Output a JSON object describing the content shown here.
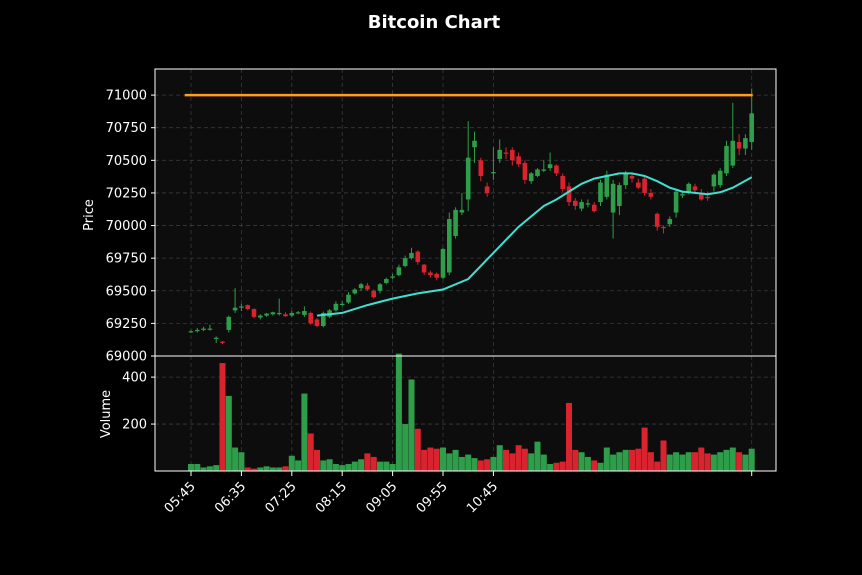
{
  "chart_data": {
    "type": "candlestick",
    "title": "Bitcoin Chart",
    "colors": {
      "background": "#000000",
      "plot_background": "#0d0d0d",
      "up": "#2e9e4a",
      "down": "#d9232e",
      "moving_average": "#40e0d0",
      "level_line": "#ff9f1a",
      "grid": "#3a3a3a"
    },
    "grid": true,
    "x_tick_labels": [
      "05:45",
      "06:35",
      "07:25",
      "08:15",
      "09:05",
      "09:55",
      "10:45"
    ],
    "price_panel": {
      "ylabel": "Price",
      "ylim": [
        69000,
        71200
      ],
      "y_ticks": [
        69000,
        69250,
        69500,
        69750,
        70000,
        70250,
        70500,
        70750,
        71000
      ],
      "level_line": 71000
    },
    "volume_panel": {
      "ylabel": "Volume",
      "ylim": [
        0,
        490
      ],
      "y_ticks": [
        200,
        400
      ]
    },
    "series": [
      {
        "name": "candles",
        "x": [
          0,
          1,
          2,
          3,
          4,
          5,
          6,
          7,
          8,
          9,
          10,
          11,
          12,
          13,
          14,
          15,
          16,
          17,
          18,
          19,
          20,
          21,
          22,
          23,
          24,
          25,
          26,
          27,
          28,
          29,
          30,
          31,
          32,
          33,
          34,
          35,
          36,
          37,
          38,
          39,
          40,
          41,
          42,
          43,
          44,
          45,
          46,
          47,
          48,
          49,
          50,
          51,
          52,
          53,
          54,
          55,
          56,
          57,
          58,
          59,
          60,
          61,
          62,
          63,
          64,
          65,
          66,
          67,
          68,
          69,
          70,
          71,
          72,
          73,
          74,
          75,
          76,
          77,
          78,
          79,
          80,
          81,
          82,
          83,
          84,
          85,
          86,
          87,
          88,
          89
        ],
        "open": [
          69185,
          69190,
          69200,
          69210,
          69140,
          69110,
          69200,
          69350,
          69370,
          69390,
          69360,
          69295,
          69310,
          69320,
          69330,
          69320,
          69310,
          69330,
          69315,
          69330,
          69280,
          69230,
          69300,
          69350,
          69400,
          69410,
          69480,
          69520,
          69540,
          69500,
          69500,
          69560,
          69600,
          69620,
          69690,
          69750,
          69800,
          69700,
          69640,
          69630,
          69600,
          69640,
          69920,
          70100,
          70200,
          70600,
          70500,
          70300,
          70400,
          70510,
          70560,
          70580,
          70530,
          70480,
          70340,
          70380,
          70420,
          70440,
          70460,
          70380,
          70300,
          70190,
          70130,
          70170,
          70160,
          70180,
          70220,
          70100,
          70150,
          70310,
          70380,
          70330,
          70360,
          70250,
          70090,
          69990,
          70010,
          70100,
          70230,
          70260,
          70300,
          70250,
          70220,
          70300,
          70310,
          70400,
          70460,
          70640,
          70590,
          70640
        ],
        "close": [
          69190,
          69200,
          69210,
          69210,
          69140,
          69100,
          69300,
          69370,
          69380,
          69360,
          69300,
          69310,
          69325,
          69335,
          69330,
          69305,
          69330,
          69335,
          69345,
          69250,
          69230,
          69330,
          69350,
          69400,
          69400,
          69470,
          69510,
          69550,
          69510,
          69450,
          69550,
          69590,
          69610,
          69680,
          69750,
          69790,
          69720,
          69640,
          69620,
          69600,
          69820,
          70050,
          70120,
          70120,
          70520,
          70650,
          70380,
          70250,
          70410,
          70580,
          70550,
          70500,
          70470,
          70350,
          70400,
          70430,
          70430,
          70470,
          70400,
          70280,
          70180,
          70150,
          70180,
          70170,
          70110,
          70330,
          70390,
          70320,
          70310,
          70400,
          70360,
          70290,
          70250,
          70220,
          69990,
          69980,
          70050,
          70260,
          70240,
          70320,
          70270,
          70200,
          70210,
          70390,
          70420,
          70610,
          70650,
          70590,
          70670,
          70860
        ],
        "high": [
          69200,
          69215,
          69225,
          69240,
          69150,
          69115,
          69310,
          69520,
          69400,
          69395,
          69365,
          69320,
          69330,
          69340,
          69440,
          69335,
          69345,
          69345,
          69380,
          69340,
          69290,
          69340,
          69360,
          69420,
          69420,
          69490,
          69520,
          69560,
          69560,
          69510,
          69560,
          69600,
          69630,
          69700,
          69770,
          69830,
          69810,
          69705,
          69655,
          69640,
          69830,
          70100,
          70140,
          70250,
          70800,
          70720,
          70520,
          70330,
          70600,
          70660,
          70600,
          70600,
          70560,
          70500,
          70410,
          70440,
          70500,
          70560,
          70470,
          70400,
          70330,
          70210,
          70200,
          70200,
          70180,
          70350,
          70420,
          70350,
          70330,
          70420,
          70400,
          70360,
          70380,
          70280,
          70100,
          70000,
          70070,
          70280,
          70260,
          70330,
          70320,
          70280,
          70260,
          70400,
          70440,
          70650,
          70940,
          70700,
          70700,
          71050
        ],
        "low": [
          69175,
          69180,
          69190,
          69195,
          69100,
          69090,
          69180,
          69330,
          69345,
          69350,
          69290,
          69280,
          69300,
          69310,
          69310,
          69300,
          69300,
          69320,
          69300,
          69240,
          69220,
          69220,
          69290,
          69340,
          69380,
          69400,
          69470,
          69500,
          69500,
          69440,
          69480,
          69550,
          69590,
          69610,
          69680,
          69740,
          69700,
          69620,
          69600,
          69580,
          69590,
          69620,
          69900,
          70080,
          70110,
          70480,
          70340,
          70220,
          70350,
          70480,
          70510,
          70460,
          70450,
          70320,
          70320,
          70370,
          70410,
          70420,
          70380,
          70260,
          70150,
          70120,
          70110,
          70140,
          70100,
          70150,
          70200,
          69900,
          70080,
          70280,
          70330,
          70280,
          70230,
          70200,
          69960,
          69940,
          69990,
          70060,
          70210,
          70240,
          70240,
          70190,
          70190,
          70260,
          70290,
          70380,
          70440,
          70540,
          70540,
          70580
        ]
      },
      {
        "name": "volume",
        "values": [
          30,
          30,
          15,
          20,
          25,
          460,
          320,
          100,
          80,
          15,
          10,
          15,
          20,
          15,
          15,
          20,
          65,
          45,
          330,
          160,
          90,
          45,
          50,
          30,
          25,
          30,
          40,
          50,
          75,
          60,
          40,
          40,
          30,
          500,
          200,
          390,
          180,
          90,
          100,
          95,
          100,
          75,
          90,
          60,
          70,
          55,
          45,
          50,
          60,
          110,
          90,
          75,
          110,
          95,
          75,
          125,
          70,
          30,
          35,
          40,
          290,
          90,
          80,
          60,
          45,
          35,
          100,
          70,
          80,
          90,
          90,
          95,
          185,
          80,
          40,
          130,
          70,
          80,
          70,
          80,
          80,
          100,
          75,
          70,
          80,
          90,
          100,
          80,
          70,
          95
        ]
      },
      {
        "name": "moving_average",
        "x": [
          20,
          24,
          28,
          32,
          36,
          40,
          44,
          48,
          52,
          56,
          58,
          60,
          62,
          64,
          66,
          68,
          70,
          72,
          74,
          76,
          78,
          80,
          82,
          84,
          86,
          89
        ],
        "values": [
          69310,
          69330,
          69390,
          69440,
          69480,
          69510,
          69590,
          69790,
          69990,
          70150,
          70200,
          70260,
          70320,
          70360,
          70380,
          70400,
          70400,
          70380,
          70340,
          70290,
          70260,
          70250,
          70240,
          70255,
          70290,
          70370
        ]
      }
    ]
  }
}
